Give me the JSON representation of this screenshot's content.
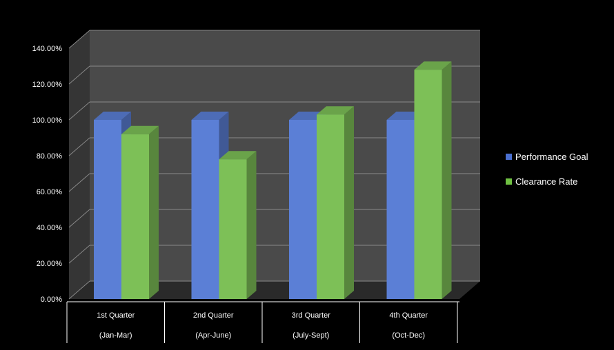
{
  "chart_data": {
    "type": "bar",
    "title": "",
    "xlabel": "",
    "ylabel": "",
    "ylim": [
      0,
      140
    ],
    "y_ticks": [
      0,
      20,
      40,
      60,
      80,
      100,
      120,
      140
    ],
    "y_tick_labels": [
      "0.00%",
      "20.00%",
      "40.00%",
      "60.00%",
      "80.00%",
      "100.00%",
      "120.00%",
      "140.00%"
    ],
    "grid": true,
    "legend_position": "right",
    "categories": [
      {
        "line1": "1st Quarter",
        "line2": "(Jan-Mar)"
      },
      {
        "line1": "2nd Quarter",
        "line2": "(Apr-June)"
      },
      {
        "line1": "3rd Quarter",
        "line2": "(July-Sept)"
      },
      {
        "line1": "4th Quarter",
        "line2": "(Oct-Dec)"
      }
    ],
    "series": [
      {
        "name": "Performance Goal",
        "values": [
          100,
          100,
          100,
          100
        ],
        "color": "#5b7fd6",
        "legend_color": "#4a6fd0"
      },
      {
        "name": "Clearance Rate",
        "values": [
          92,
          78,
          103,
          128
        ],
        "color": "#7dc057",
        "legend_color": "#6fc042"
      }
    ]
  },
  "colors": {
    "background": "#000000",
    "back_wall": "#4a4a4a",
    "side_wall": "#353535",
    "floor": "#2a2a2a",
    "gridline": "#8a8a8a",
    "text": "#ffffff"
  }
}
